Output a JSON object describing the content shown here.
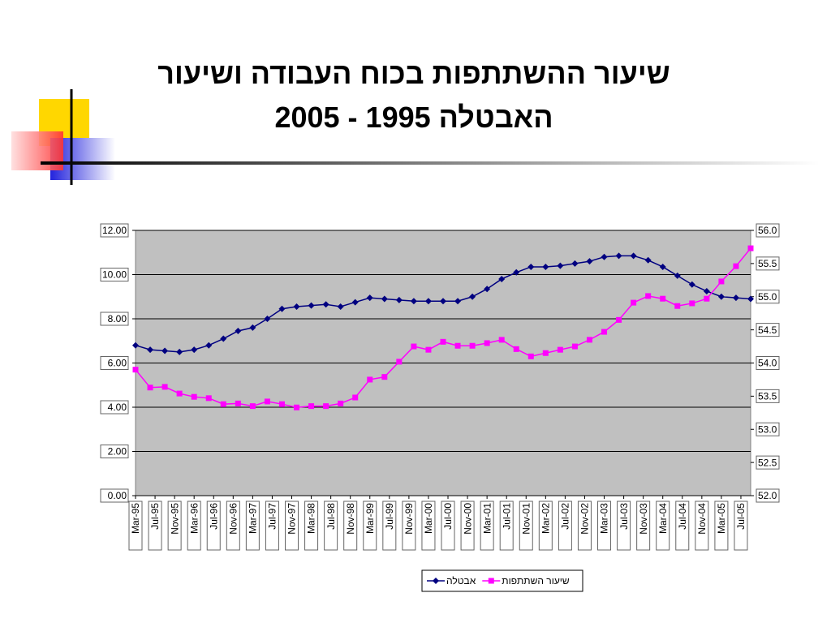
{
  "chart_data": {
    "type": "line",
    "title": [
      "שיעור ההשתתפות בכוח העבודה ושיעור",
      "האבטלה 1995 - 2005"
    ],
    "x_labels": [
      "Mar-95",
      "Jul-95",
      "Nov-95",
      "Mar-96",
      "Jul-96",
      "Nov-96",
      "Mar-97",
      "Jul-97",
      "Nov-97",
      "Mar-98",
      "Jul-98",
      "Nov-98",
      "Mar-99",
      "Jul-99",
      "Nov-99",
      "Mar-00",
      "Jul-00",
      "Nov-00",
      "Mar-01",
      "Jul-01",
      "Nov-01",
      "Mar-02",
      "Jul-02",
      "Nov-02",
      "Mar-03",
      "Jul-03",
      "Nov-03",
      "Mar-04",
      "Jul-04",
      "Nov-04",
      "Mar-05",
      "Jul-05"
    ],
    "series": [
      {
        "name": "אבטלה",
        "color": "#000080",
        "marker": "diamond",
        "axis": "y",
        "values": [
          6.8,
          6.6,
          6.55,
          6.5,
          6.6,
          6.8,
          7.1,
          7.45,
          7.6,
          8.0,
          8.45,
          8.55,
          8.6,
          8.65,
          8.55,
          8.75,
          8.95,
          8.9,
          8.85,
          8.8,
          8.8,
          8.8,
          8.8,
          9.0,
          9.35,
          9.8,
          10.1,
          10.35,
          10.35,
          10.4,
          10.5,
          10.6,
          10.8,
          10.85,
          10.85,
          10.65,
          10.35,
          9.95,
          9.55,
          9.25,
          9.0,
          8.95,
          8.9
        ]
      },
      {
        "name": "שיעור השתתפות",
        "color": "#ff00ff",
        "marker": "square",
        "axis": "y2",
        "values": [
          53.9,
          53.63,
          53.64,
          53.54,
          53.49,
          53.47,
          53.38,
          53.39,
          53.35,
          53.42,
          53.38,
          53.33,
          53.35,
          53.35,
          53.39,
          53.48,
          53.75,
          53.79,
          54.02,
          54.25,
          54.2,
          54.32,
          54.26,
          54.26,
          54.3,
          54.35,
          54.21,
          54.1,
          54.15,
          54.2,
          54.25,
          54.35,
          54.47,
          54.65,
          54.91,
          55.01,
          54.97,
          54.86,
          54.9,
          54.97,
          55.23,
          55.46,
          55.73
        ]
      }
    ],
    "ylim": [
      0,
      12
    ],
    "yticks": [
      {
        "value": 0,
        "label": "0.00"
      },
      {
        "value": 2,
        "label": "2.00"
      },
      {
        "value": 4,
        "label": "4.00"
      },
      {
        "value": 6,
        "label": "6.00"
      },
      {
        "value": 8,
        "label": "8.00"
      },
      {
        "value": 10,
        "label": "10.00"
      },
      {
        "value": 12,
        "label": "12.00"
      }
    ],
    "y2lim": [
      52,
      56
    ],
    "y2ticks": [
      {
        "value": 52,
        "label": "52.0"
      },
      {
        "value": 52.5,
        "label": "52.5"
      },
      {
        "value": 53,
        "label": "53.0"
      },
      {
        "value": 53.5,
        "label": "53.5"
      },
      {
        "value": 54,
        "label": "54.0"
      },
      {
        "value": 54.5,
        "label": "54.5"
      },
      {
        "value": 55,
        "label": "55.0"
      },
      {
        "value": 55.5,
        "label": "55.5"
      },
      {
        "value": 56,
        "label": "56.0"
      }
    ],
    "grid": true,
    "legend": "bottom"
  }
}
